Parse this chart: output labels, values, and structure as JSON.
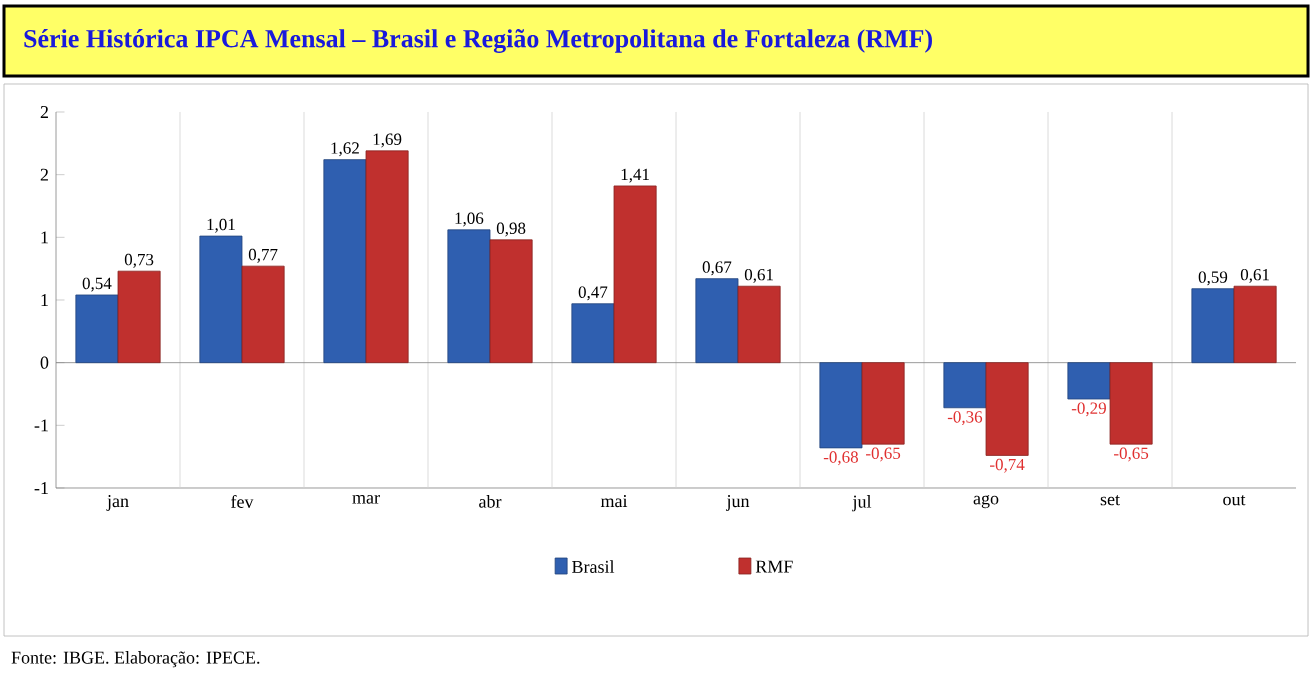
{
  "chart_data": {
    "type": "bar",
    "title": "Série Histórica IPCA Mensal – Brasil e Região Metropolitana de Fortaleza (RMF)",
    "categories": [
      "jan",
      "fev",
      "mar",
      "abr",
      "mai",
      "jun",
      "jul",
      "ago",
      "set",
      "out"
    ],
    "series": [
      {
        "name": "Brasil",
        "color": "#2f5fb0",
        "values": [
          0.54,
          1.01,
          1.62,
          1.06,
          0.47,
          0.67,
          -0.68,
          -0.36,
          -0.29,
          0.59
        ],
        "value_labels": [
          "0,54",
          "1,01",
          "1,62",
          "1,06",
          "0,47",
          "0,67",
          "-0,68",
          "-0,36",
          "-0,29",
          "0,59"
        ]
      },
      {
        "name": "RMF",
        "color": "#c0302e",
        "values": [
          0.73,
          0.77,
          1.69,
          0.98,
          1.41,
          0.61,
          -0.65,
          -0.74,
          -0.65,
          0.61
        ],
        "value_labels": [
          "0,73",
          "0,77",
          "1,69",
          "0,98",
          "1,41",
          "0,61",
          "-0,65",
          "-0,74",
          "-0,65",
          "0,61"
        ]
      }
    ],
    "ylim": [
      -1,
      2
    ],
    "yticks": [
      {
        "value": -1,
        "label": "-1"
      },
      {
        "value": -0.5,
        "label": "-1"
      },
      0,
      {
        "value": 0.5,
        "label": "1"
      },
      {
        "value": 1,
        "label": "1"
      },
      {
        "value": 1.5,
        "label": "2"
      },
      {
        "value": 2,
        "label": "2"
      }
    ],
    "grid": "x",
    "legend": "bottom",
    "annotations": [
      "Fonte: IBGE. Elaboração: IPECE."
    ]
  }
}
